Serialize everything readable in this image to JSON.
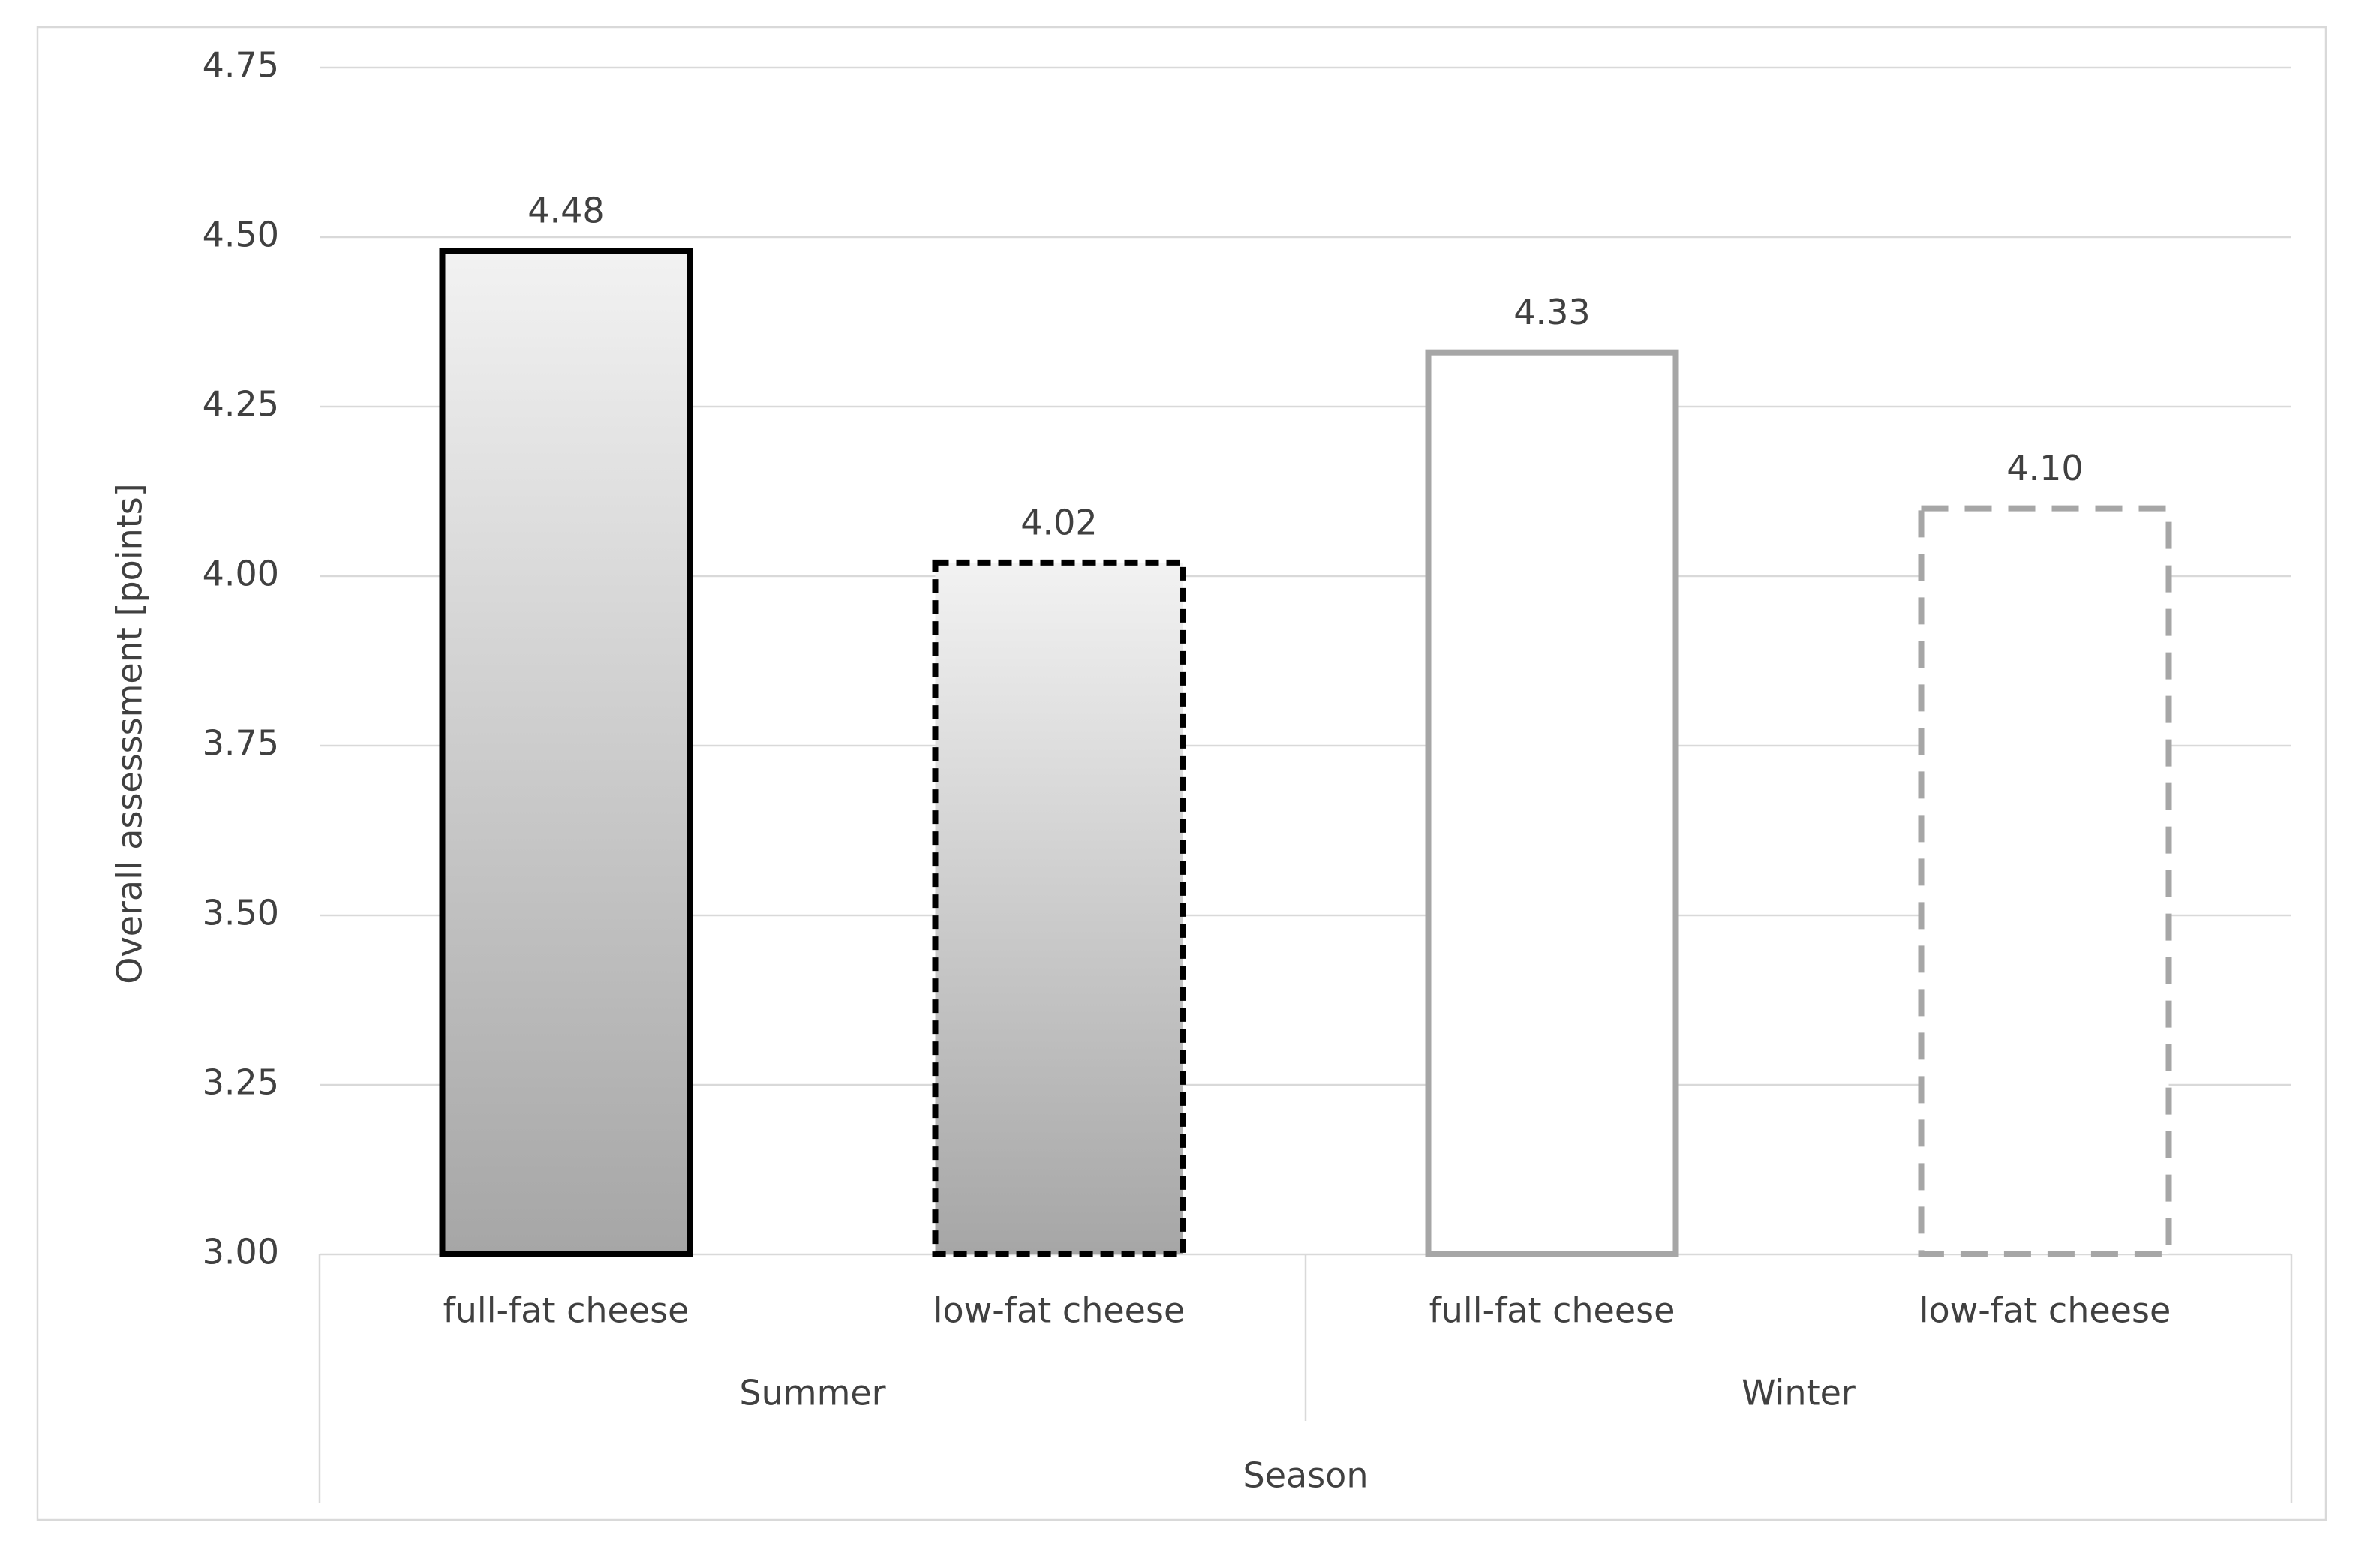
{
  "chart_data": {
    "type": "bar",
    "y_axis_label": "Overall assesssment  [points]",
    "x_axis_label": "Season",
    "groups": [
      "Summer",
      "Winter"
    ],
    "categories": [
      "full-fat cheese",
      "low-fat cheese",
      "full-fat cheese",
      "low-fat cheese"
    ],
    "values": [
      4.48,
      4.02,
      4.33,
      4.1
    ],
    "value_labels": [
      "4.48",
      "4.02",
      "4.33",
      "4.10"
    ],
    "ylim": [
      3,
      4.75
    ],
    "yticks": [
      {
        "value": 3,
        "label": "3.00"
      },
      3.25,
      {
        "value": 3.5,
        "label": "3.50"
      },
      3.75,
      {
        "value": 4,
        "label": "4.00"
      },
      4.25,
      {
        "value": 4.5,
        "label": "4.50"
      },
      4.75
    ],
    "grid": true
  }
}
